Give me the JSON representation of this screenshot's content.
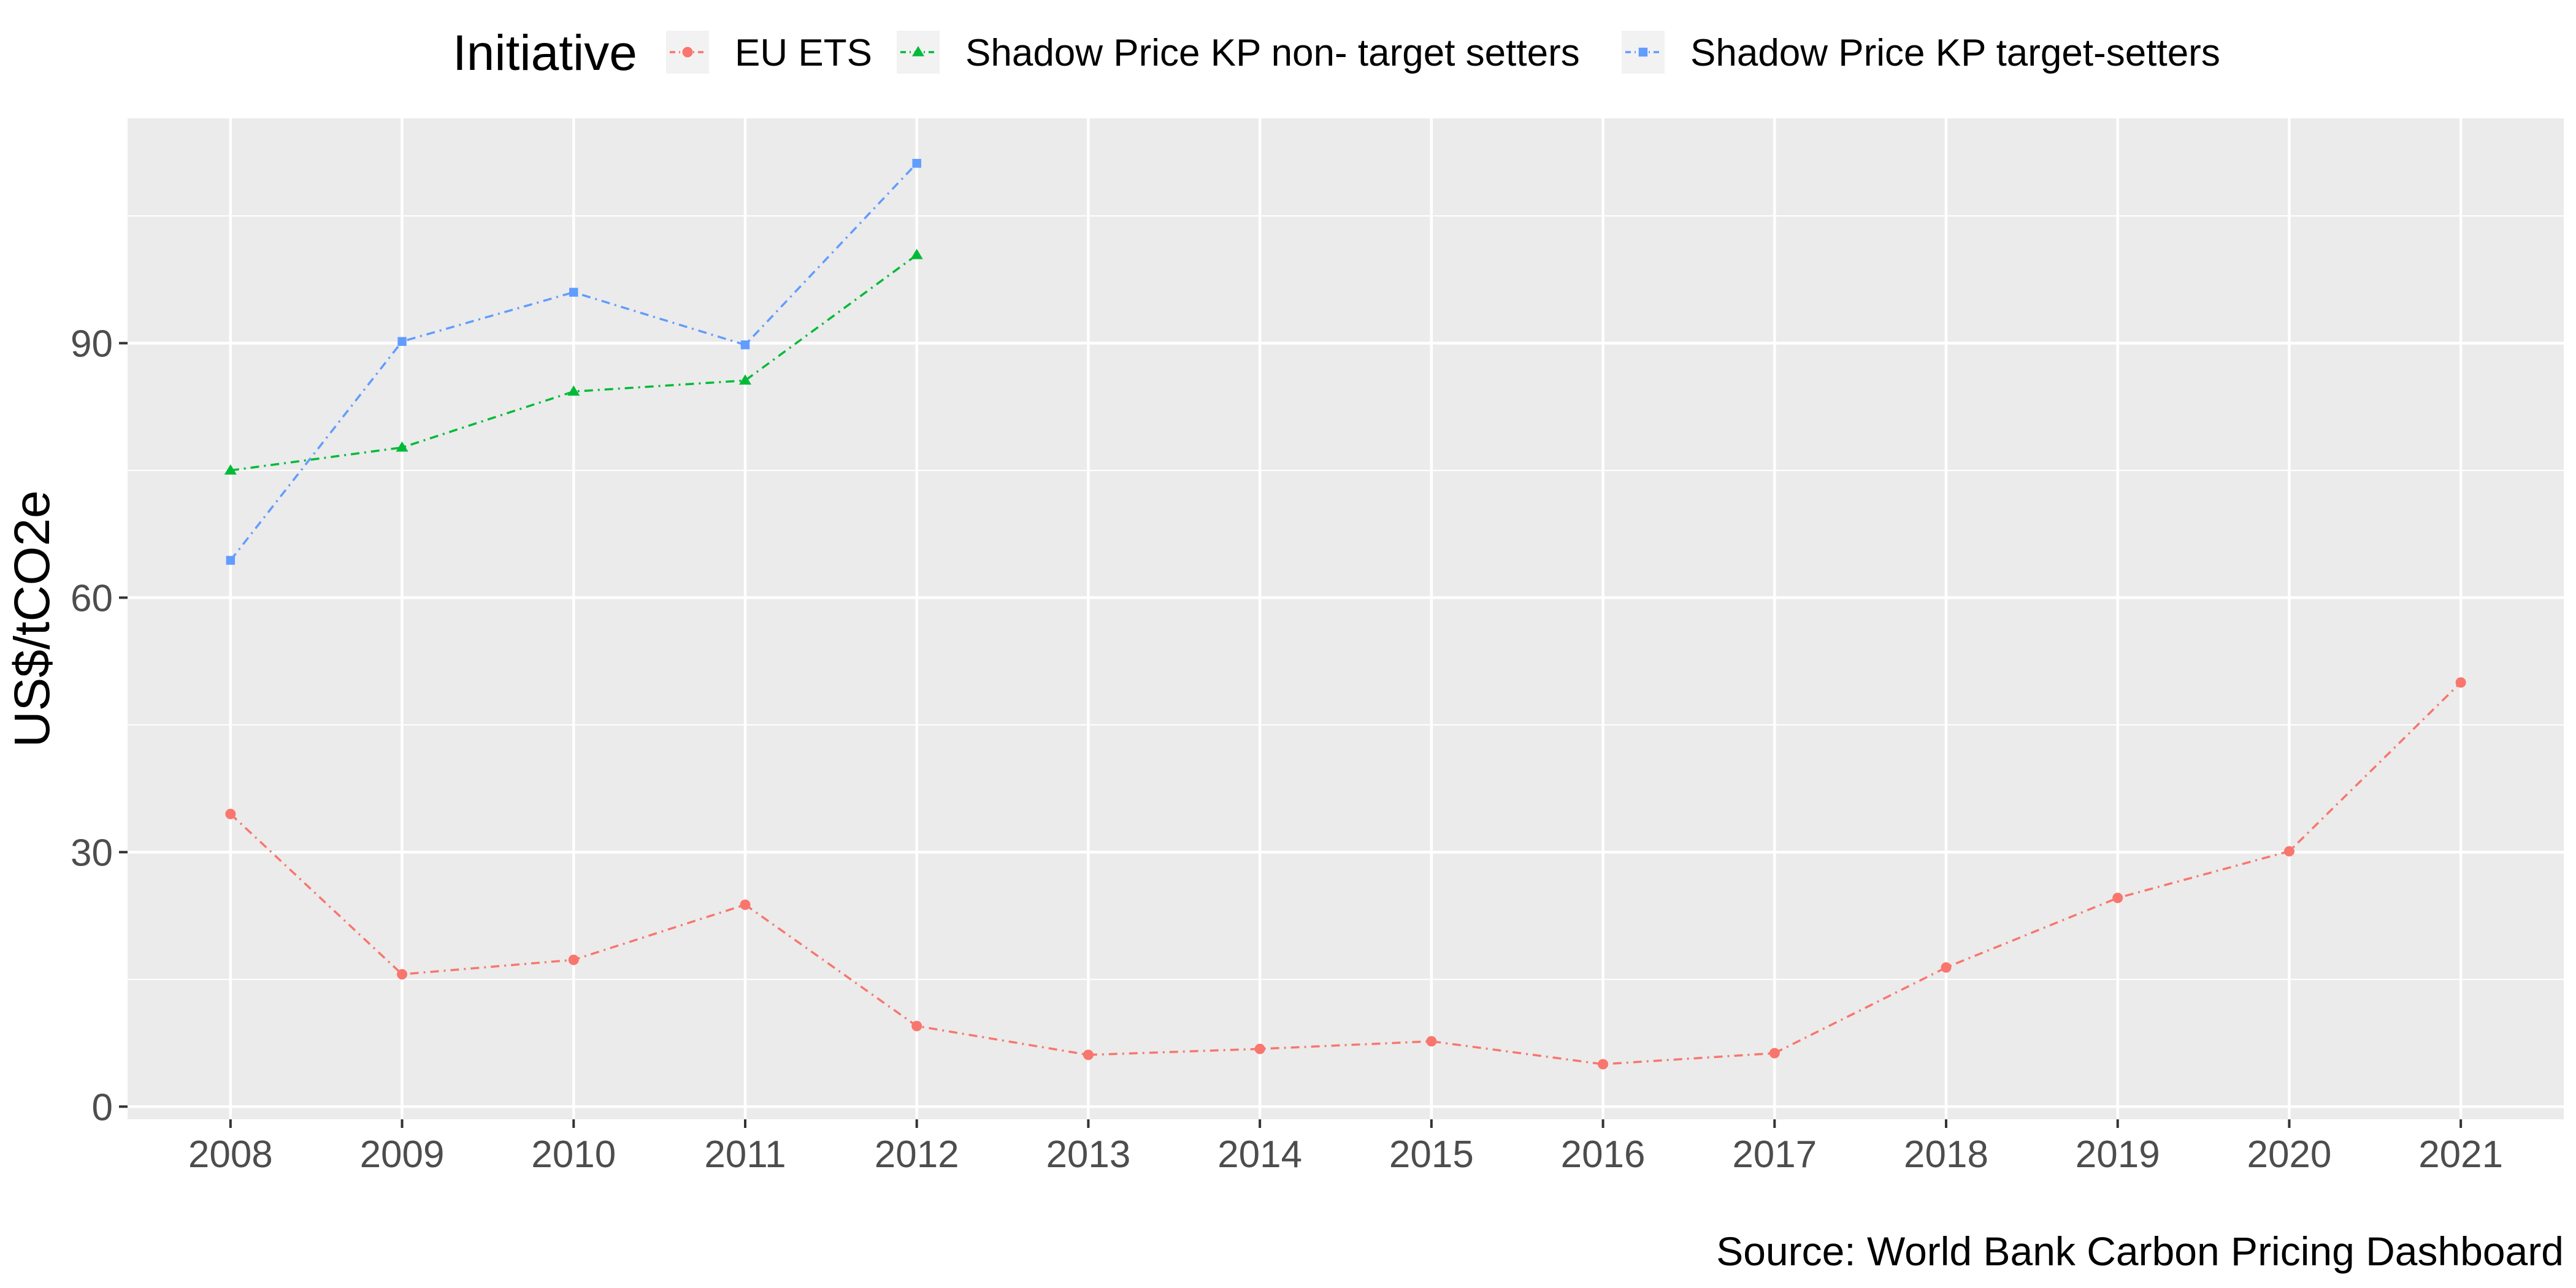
{
  "chart_data": {
    "type": "line",
    "title": "",
    "xlabel": "",
    "ylabel": "US$/tCO2e",
    "caption": "Source: World Bank Carbon Pricing Dashboard",
    "legend": {
      "title": "Initiative",
      "placement": "top"
    },
    "x": [
      2008,
      2009,
      2010,
      2011,
      2012,
      2013,
      2014,
      2015,
      2016,
      2017,
      2018,
      2019,
      2020,
      2021
    ],
    "x_ticks": [
      "2008",
      "2009",
      "2010",
      "2011",
      "2012",
      "2013",
      "2014",
      "2015",
      "2016",
      "2017",
      "2018",
      "2019",
      "2020",
      "2021"
    ],
    "xlim": [
      2007.4,
      2021.6
    ],
    "ylim": [
      -1.5,
      116.5
    ],
    "y_ticks": [
      0,
      30,
      60,
      90
    ],
    "y_tick_labels": [
      "0",
      "30",
      "60",
      "90"
    ],
    "grid": true,
    "series": [
      {
        "name": "EU ETS",
        "color": "#F8766D",
        "marker": "circle",
        "linestyle": "dashdot",
        "x": [
          2008,
          2009,
          2010,
          2011,
          2012,
          2013,
          2014,
          2015,
          2016,
          2017,
          2018,
          2019,
          2020,
          2021
        ],
        "values": [
          34.5,
          15.6,
          17.3,
          23.8,
          9.5,
          6.1,
          6.8,
          7.7,
          5.0,
          6.3,
          16.4,
          24.6,
          30.1,
          50.0
        ]
      },
      {
        "name": "Shadow Price KP non- target setters",
        "color": "#00BA38",
        "marker": "triangle",
        "linestyle": "dashdot",
        "x": [
          2008,
          2009,
          2010,
          2011,
          2012
        ],
        "values": [
          75.0,
          77.7,
          84.3,
          85.6,
          100.4
        ]
      },
      {
        "name": "Shadow Price KP target-setters",
        "color": "#619CFF",
        "marker": "square",
        "linestyle": "dashdot",
        "x": [
          2008,
          2009,
          2010,
          2011,
          2012
        ],
        "values": [
          64.4,
          90.2,
          96.0,
          89.8,
          111.2
        ]
      }
    ]
  }
}
